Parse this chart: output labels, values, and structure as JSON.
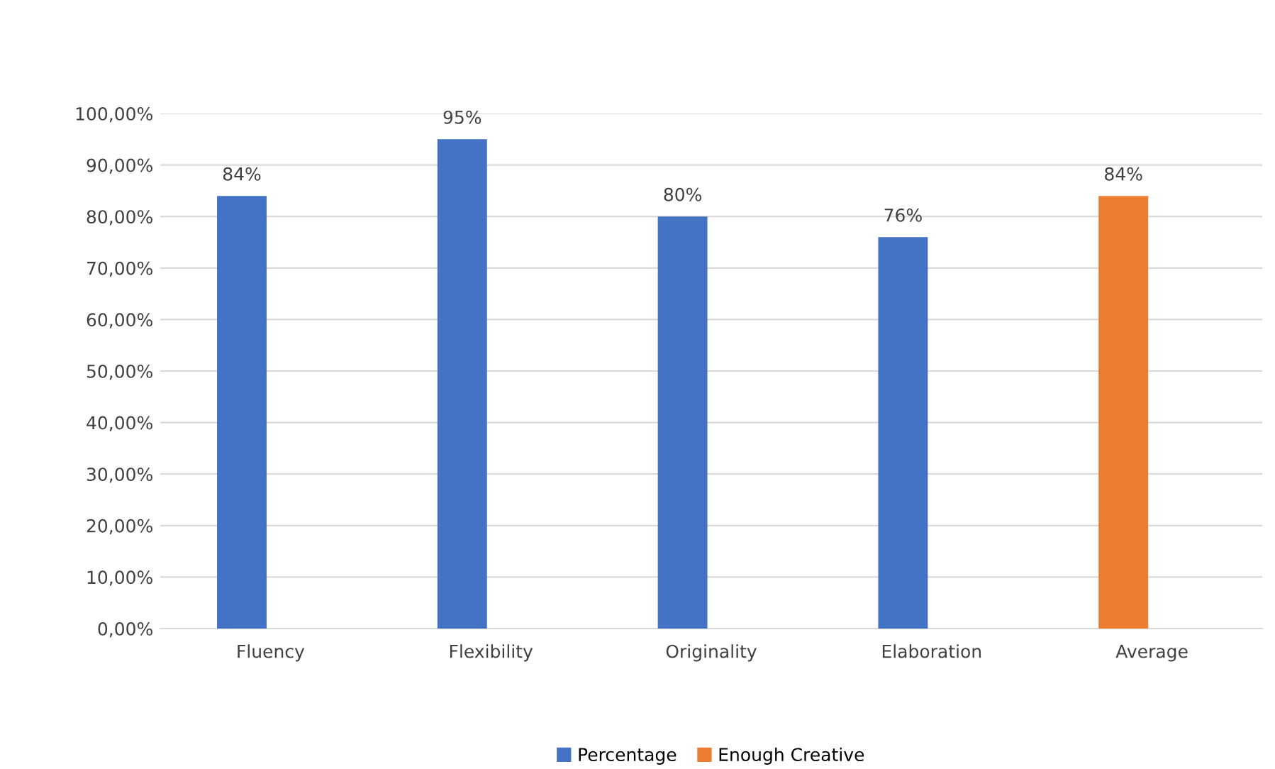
{
  "chart_data": {
    "type": "bar",
    "categories": [
      "Fluency",
      "Flexibility",
      "Originality",
      "Elaboration",
      "Average"
    ],
    "series": [
      {
        "name": "Percentage",
        "color": "#4472c4",
        "values": [
          84,
          95,
          80,
          76,
          null
        ],
        "value_labels": [
          "84%",
          "95%",
          "80%",
          "76%",
          null
        ]
      },
      {
        "name": "Enough Creative",
        "color": "#ed7d31",
        "values": [
          null,
          null,
          null,
          null,
          84
        ],
        "value_labels": [
          null,
          null,
          null,
          null,
          "84%"
        ]
      }
    ],
    "ylim": [
      0,
      100
    ],
    "yticks": [
      {
        "value": 0,
        "label": "0,00%"
      },
      {
        "value": 10,
        "label": "10,00%"
      },
      {
        "value": 20,
        "label": "20,00%"
      },
      {
        "value": 30,
        "label": "30,00%"
      },
      {
        "value": 40,
        "label": "40,00%"
      },
      {
        "value": 50,
        "label": "50,00%"
      },
      {
        "value": 60,
        "label": "60,00%"
      },
      {
        "value": 70,
        "label": "70,00%"
      },
      {
        "value": 80,
        "label": "80,00%"
      },
      {
        "value": 90,
        "label": "90,00%"
      },
      {
        "value": 100,
        "label": "100,00%"
      }
    ],
    "grid": "y",
    "legend": "bottom"
  }
}
